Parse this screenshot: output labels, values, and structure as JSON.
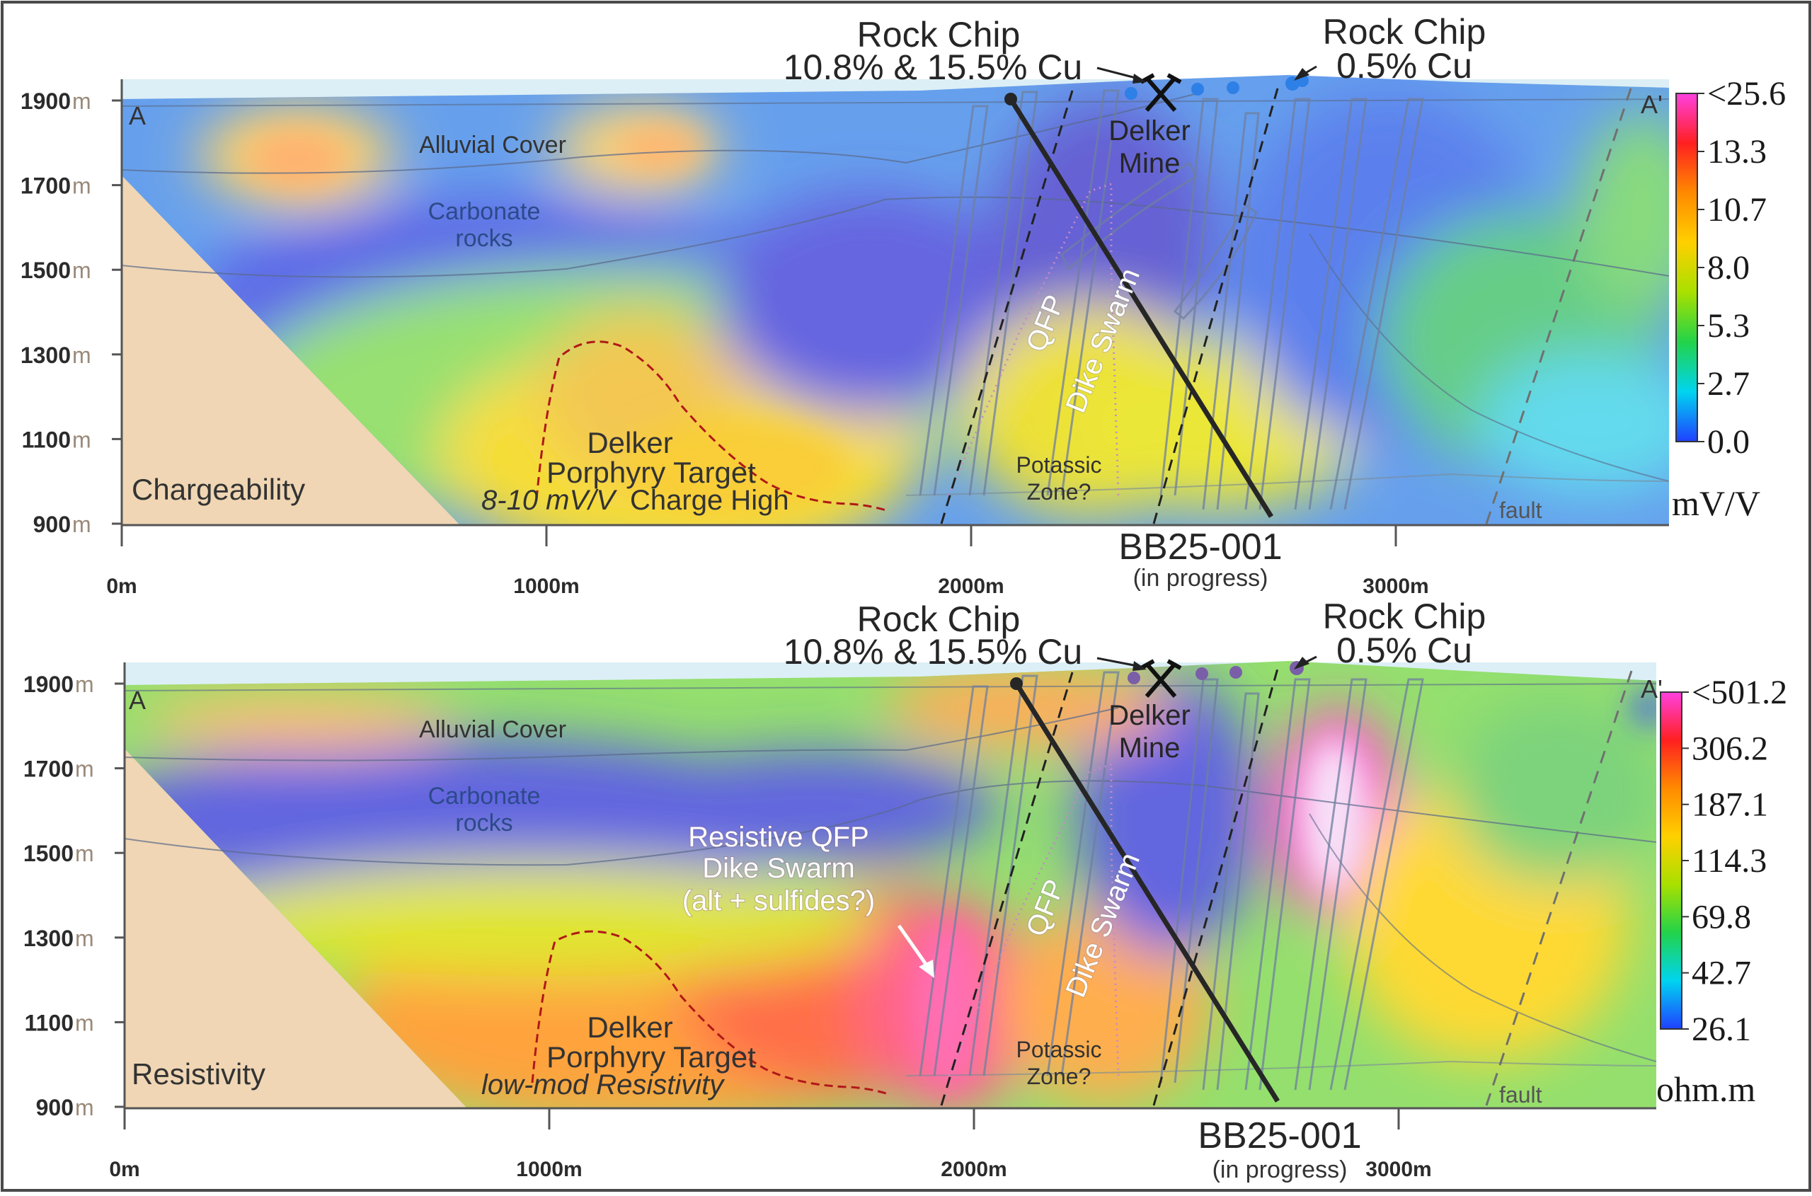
{
  "colors": {
    "bedrock": "#f0d6b4",
    "sky": "#dceff6",
    "gradient_top": [
      "#ff40e0",
      "#ff2020",
      "#ff8a00",
      "#ffd000",
      "#a8e000",
      "#22d34a",
      "#00d4f0",
      "#2040ff"
    ],
    "gradient_bottom": [
      "#ff40e0",
      "#ff2020",
      "#ff8a00",
      "#ffd000",
      "#a8e000",
      "#22d34a",
      "#00d4f0",
      "#2040ff"
    ],
    "target_outline": "#b01818",
    "drillhole": "#262626"
  },
  "axes": {
    "elevation_labels": [
      "1900",
      "1700",
      "1500",
      "1300",
      "1100",
      "900"
    ],
    "elevation_unit": "m",
    "distance_labels": [
      "0m",
      "1000m",
      "2000m",
      "3000m"
    ]
  },
  "panels": [
    {
      "id": "chargeability",
      "method_label": "Chargeability",
      "colorbar_ticks": [
        "<25.6",
        "13.3",
        "10.7",
        "8.0",
        "5.3",
        "2.7",
        "0.0"
      ],
      "colorbar_unit": "mV/V",
      "section_start": "A",
      "section_end": "A'",
      "alluvial": "Alluvial Cover",
      "carbonate": [
        "Carbonate",
        "rocks"
      ],
      "dike": [
        "QFP",
        "Dike Swarm"
      ],
      "potassic": [
        "Potassic",
        "Zone?"
      ],
      "fault": "fault",
      "target": [
        "Delker",
        "Porphyry Target"
      ],
      "target_note_italic": "8-10 mV/V",
      "target_note_rest": " Charge High",
      "rock_chip_1": [
        "Rock Chip",
        "10.8% & 15.5% Cu"
      ],
      "rock_chip_2": [
        "Rock Chip",
        "0.5% Cu"
      ],
      "mine": [
        "Delker",
        "Mine"
      ],
      "drillhole_id": "BB25-001",
      "drillhole_status": "(in progress)"
    },
    {
      "id": "resistivity",
      "method_label": "Resistivity",
      "colorbar_ticks": [
        "<501.2",
        "306.2",
        "187.1",
        "114.3",
        "69.8",
        "42.7",
        "26.1"
      ],
      "colorbar_unit": "ohm.m",
      "section_start": "A",
      "section_end": "A'",
      "alluvial": "Alluvial Cover",
      "carbonate": [
        "Carbonate",
        "rocks"
      ],
      "dike": [
        "QFP",
        "Dike Swarm"
      ],
      "potassic": [
        "Potassic",
        "Zone?"
      ],
      "fault": "fault",
      "target": [
        "Delker",
        "Porphyry Target"
      ],
      "target_note_italic": "low-mod Resistivity",
      "target_note_rest": "",
      "rock_chip_1": [
        "Rock Chip",
        "10.8% & 15.5% Cu"
      ],
      "rock_chip_2": [
        "Rock Chip",
        "0.5% Cu"
      ],
      "mine": [
        "Delker",
        "Mine"
      ],
      "drillhole_id": "BB25-001",
      "drillhole_status": "(in progress)",
      "resistive_callout": [
        "Resistive QFP",
        "Dike Swarm",
        "(alt + sulfides?)"
      ]
    }
  ]
}
